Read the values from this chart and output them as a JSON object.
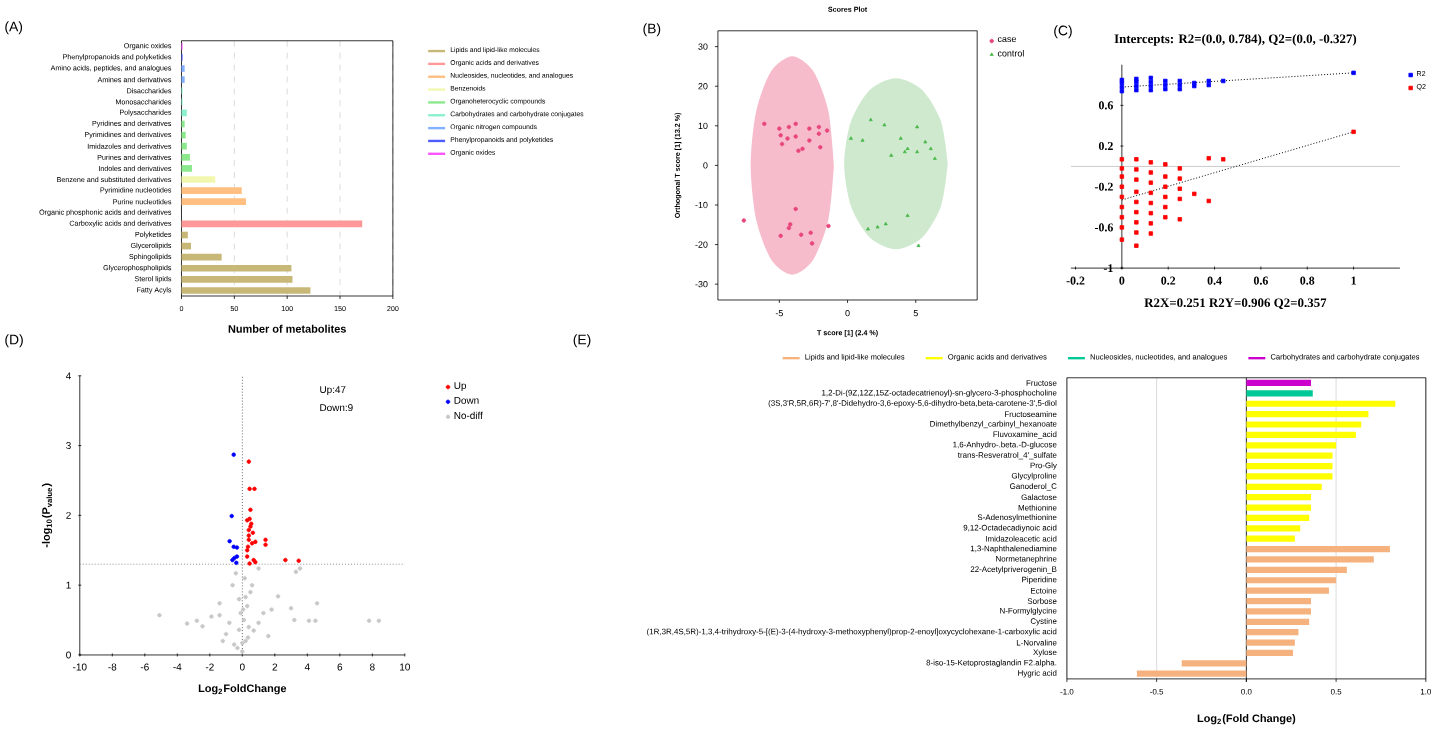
{
  "chart_data": [
    {
      "type": "bar",
      "orientation": "horizontal",
      "xlabel": "Number of metabolites",
      "annotations": [
        "(A)"
      ],
      "categories": [
        "Organic oxides",
        "Phenylpropanoids and polyketides",
        "Amino acids, peptides, and analogues",
        "Amines and derivatives",
        "Disaccharides",
        "Monosaccharides",
        "Polysaccharides",
        "Pyridines and derivatives",
        "Pyrimidines and derivatives",
        "Imidazoles and derivatives",
        "Purines and derivatives",
        "Indoles and derivatives",
        "Benzene and substituted derivatives",
        "Pyrimidine nucleotides",
        "Purine nucleotides",
        "Organic phosphonic acids and derivatives",
        "Carboxylic acids and derivatives",
        "Polyketides",
        "Glycerolipids",
        "Sphingolipids",
        "Glycerophospholipids",
        "Sterol lipids",
        "Fatty Acyls"
      ],
      "series": [
        {
          "name": "Lipids and lipid-like molecules",
          "color": "#c8b878",
          "values": [
            null,
            null,
            null,
            null,
            null,
            null,
            null,
            null,
            null,
            null,
            null,
            null,
            null,
            null,
            null,
            null,
            null,
            6,
            9,
            38,
            104,
            105,
            122
          ]
        },
        {
          "name": "Organic acids and derivatives",
          "color": "#ff9999",
          "values": [
            null,
            null,
            null,
            null,
            null,
            null,
            null,
            null,
            null,
            null,
            null,
            null,
            null,
            null,
            null,
            null,
            171,
            null,
            null,
            null,
            null,
            null,
            null
          ]
        },
        {
          "name": "Nucleosides, nucleotides, and analogues",
          "color": "#ffbf80",
          "values": [
            null,
            null,
            null,
            null,
            null,
            null,
            null,
            null,
            null,
            null,
            null,
            null,
            null,
            57,
            61,
            null,
            null,
            null,
            null,
            null,
            null,
            null,
            null
          ]
        },
        {
          "name": "Benzenoids",
          "color": "#f2f7b0",
          "values": [
            null,
            null,
            null,
            null,
            null,
            null,
            null,
            null,
            null,
            null,
            null,
            null,
            32,
            null,
            null,
            null,
            null,
            null,
            null,
            null,
            null,
            null,
            null
          ]
        },
        {
          "name": "Organoheterocyclic compounds",
          "color": "#8ce88c",
          "values": [
            null,
            null,
            null,
            null,
            null,
            null,
            null,
            3,
            4,
            5,
            8,
            10,
            null,
            null,
            null,
            null,
            null,
            null,
            null,
            null,
            null,
            null,
            null
          ]
        },
        {
          "name": "Carbohydrates and carbohydrate conjugates",
          "color": "#8cf0cc",
          "values": [
            null,
            null,
            null,
            null,
            1,
            1,
            5,
            null,
            null,
            null,
            null,
            null,
            null,
            null,
            null,
            null,
            null,
            null,
            null,
            null,
            null,
            null,
            null
          ]
        },
        {
          "name": "Organic nitrogen compounds",
          "color": "#80b0ff",
          "values": [
            null,
            null,
            3,
            3,
            null,
            null,
            null,
            null,
            null,
            null,
            null,
            null,
            null,
            null,
            null,
            null,
            null,
            null,
            null,
            null,
            null,
            null,
            null
          ]
        },
        {
          "name": "Phenylpropanoids and polyketides",
          "color": "#4d5cff",
          "values": [
            null,
            1,
            null,
            null,
            null,
            null,
            null,
            null,
            null,
            null,
            null,
            null,
            null,
            null,
            null,
            null,
            null,
            null,
            null,
            null,
            null,
            null,
            null
          ]
        },
        {
          "name": "Organic oxides",
          "color": "#ff55ff",
          "values": [
            1,
            null,
            null,
            null,
            null,
            null,
            null,
            null,
            null,
            null,
            null,
            null,
            null,
            null,
            null,
            null,
            null,
            null,
            null,
            null,
            null,
            null,
            null
          ]
        }
      ],
      "xlim": [
        0,
        200
      ],
      "xticks": [
        0,
        50,
        100,
        150,
        200
      ],
      "grid": "x",
      "legend": "right"
    },
    {
      "type": "scatter",
      "title": "Scores Plot",
      "xlabel": "T score [1] (2.4 %)",
      "ylabel": "Orthogonal T score [1] (13.2 %)",
      "annotations": [
        "(B)"
      ],
      "series": [
        {
          "type": "area",
          "color": "#f6bccb",
          "x": [
            -1.0,
            -1.41,
            -2.53,
            -4.05,
            -5.58,
            -6.69,
            -7.1,
            -6.69,
            -5.58,
            -4.05,
            -2.53,
            -1.41,
            -1.0
          ],
          "values": [
            0,
            13.8,
            23.9,
            27.6,
            23.9,
            13.8,
            0,
            -13.8,
            -23.9,
            -27.6,
            -23.9,
            -13.8,
            0
          ]
        },
        {
          "type": "area",
          "color": "#cfe9cf",
          "x": [
            7.35,
            6.84,
            5.45,
            3.55,
            1.65,
            0.26,
            -0.25,
            0.26,
            1.65,
            3.55,
            5.45,
            6.84,
            7.35
          ],
          "values": [
            0.4,
            11.2,
            19.1,
            22.0,
            19.1,
            11.2,
            0.4,
            -10.4,
            -18.3,
            -21.2,
            -18.3,
            -10.4,
            0.4
          ]
        },
        {
          "name": "case",
          "color": "#e8457a",
          "marker": "circle",
          "x": [
            -6.1,
            -5.0,
            -4.3,
            -3.8,
            -2.8,
            -2.1,
            -1.5,
            -4.9,
            -4.4,
            -3.8,
            -2.8,
            -2.1,
            -4.8,
            -3.6,
            -2.0,
            -3.3,
            -7.6,
            -3.8,
            -4.2,
            -4.3,
            -4.9,
            -3.4,
            -2.7,
            -1.4,
            -2.6
          ],
          "values": [
            10.5,
            9.3,
            9.7,
            10.5,
            9.3,
            9.7,
            8.8,
            7.6,
            6.8,
            7.3,
            6.3,
            8.0,
            5.4,
            3.7,
            4.6,
            4.2,
            -13.9,
            -11.0,
            -14.9,
            -15.8,
            -17.8,
            -17.5,
            -17.0,
            -15.3,
            -19.7
          ]
        },
        {
          "name": "control",
          "color": "#4cb84c",
          "marker": "triangle",
          "x": [
            0.25,
            1.7,
            1.1,
            2.7,
            3.9,
            3.2,
            4.2,
            4.4,
            5.1,
            5.1,
            5.7,
            6.1,
            6.4,
            2.8,
            4.4,
            5.2,
            1.5,
            2.2
          ],
          "values": [
            6.8,
            11.5,
            6.3,
            10.2,
            6.8,
            2.5,
            3.4,
            4.2,
            9.7,
            3.4,
            5.9,
            4.2,
            1.7,
            -14.8,
            -12.7,
            -20.3,
            -16.1,
            -15.6
          ]
        }
      ],
      "xlim": [
        -9.5,
        9.5
      ],
      "xticks": [
        -5,
        0,
        5
      ],
      "ylim": [
        -34,
        34
      ],
      "yticks": [
        -30,
        -20,
        -10,
        0,
        10,
        20,
        30
      ],
      "legend": "top right"
    },
    {
      "type": "scatter",
      "title": "Intercepts: R2=(0.0, 0.784), Q2=(0.0, -0.327)",
      "xlabel": "R2X=0.251   R2Y=0.906   Q2=0.357",
      "annotations": [
        "(C)"
      ],
      "series": [
        {
          "name": "R2",
          "color": "#0000ff",
          "marker": "square",
          "x": [
            0,
            0,
            0,
            0,
            0.0625,
            0.0625,
            0.0625,
            0.0625,
            0.125,
            0.125,
            0.125,
            0.125,
            0.1875,
            0.1875,
            0.1875,
            0.25,
            0.25,
            0.25,
            0.3125,
            0.3125,
            0.375,
            0.375,
            0.4375,
            1
          ],
          "values": [
            0.74,
            0.78,
            0.82,
            0.85,
            0.75,
            0.79,
            0.83,
            0.86,
            0.75,
            0.79,
            0.83,
            0.87,
            0.76,
            0.8,
            0.84,
            0.76,
            0.8,
            0.84,
            0.79,
            0.82,
            0.8,
            0.84,
            0.84,
            0.92
          ]
        },
        {
          "name": "Q2",
          "color": "#ff0000",
          "marker": "square",
          "x": [
            0,
            0,
            0,
            0,
            0,
            0,
            0,
            0,
            0,
            0.0625,
            0.0625,
            0.0625,
            0.0625,
            0.0625,
            0.0625,
            0.0625,
            0.0625,
            0.0625,
            0.125,
            0.125,
            0.125,
            0.125,
            0.125,
            0.125,
            0.125,
            0.125,
            0.1875,
            0.1875,
            0.1875,
            0.1875,
            0.1875,
            0.1875,
            0.25,
            0.25,
            0.25,
            0.25,
            0.25,
            0.3125,
            0.375,
            0.375,
            0.4375,
            1
          ],
          "values": [
            0.07,
            -0.02,
            -0.1,
            -0.2,
            -0.3,
            -0.4,
            -0.5,
            -0.6,
            -0.72,
            0.07,
            -0.03,
            -0.13,
            -0.25,
            -0.35,
            -0.45,
            -0.55,
            -0.65,
            -0.78,
            0.04,
            -0.06,
            -0.16,
            -0.26,
            -0.36,
            -0.46,
            -0.56,
            -0.66,
            0.02,
            -0.1,
            -0.2,
            -0.3,
            -0.4,
            -0.5,
            -0.02,
            -0.12,
            -0.22,
            -0.32,
            -0.52,
            -0.27,
            0.08,
            -0.34,
            0.07,
            0.34
          ]
        },
        {
          "type": "line",
          "line_style": "dotted",
          "color": "#000000",
          "x": [
            0,
            1
          ],
          "values": [
            0.78,
            0.92
          ]
        },
        {
          "type": "line",
          "line_style": "dotted",
          "color": "#000000",
          "x": [
            0,
            1
          ],
          "values": [
            -0.33,
            0.34
          ]
        }
      ],
      "ref_lines": [
        {
          "axis": "y",
          "value": 0,
          "color": "#c8c8c8",
          "line_style": "solid"
        }
      ],
      "xlim": [
        -0.22,
        1.2
      ],
      "xticks": [
        -0.2,
        0,
        0.2,
        0.4,
        0.6,
        0.8,
        1
      ],
      "ylim": [
        -1,
        1
      ],
      "yticks": [
        -1,
        -0.6,
        -0.2,
        0.2,
        0.6
      ],
      "legend": "top right"
    },
    {
      "type": "scatter",
      "xlabel": "Log$_{2}$FoldChange",
      "ylabel": "-log$_{10}$(P$_{value}$)",
      "annotations": [
        "(D)",
        "Up:47",
        "Down:9"
      ],
      "marker": "circle",
      "series": [
        {
          "name": "Up",
          "color": "#ff0000",
          "x": [
            0.4,
            0.45,
            0.75,
            0.5,
            0.45,
            0.3,
            0.5,
            0.4,
            0.4,
            0.4,
            0.3,
            0.3,
            0.6,
            0.7,
            0.45,
            1.43,
            1.43,
            0.8,
            2.65,
            3.47,
            0.8,
            0.55,
            0.35,
            0.65
          ],
          "values": [
            2.77,
            2.38,
            2.38,
            2.08,
            1.95,
            1.93,
            1.84,
            1.79,
            1.71,
            1.65,
            1.5,
            1.41,
            1.6,
            1.36,
            1.31,
            1.65,
            1.58,
            1.62,
            1.36,
            1.35,
            1.33,
            1.88,
            1.55,
            1.75
          ]
        },
        {
          "name": "Down",
          "color": "#0000ff",
          "x": [
            -0.53,
            -0.65,
            -0.78,
            -0.53,
            -0.33,
            -0.33,
            -0.61,
            -0.37,
            -0.49
          ],
          "values": [
            2.87,
            1.99,
            1.63,
            1.55,
            1.54,
            1.41,
            1.36,
            1.32,
            1.39
          ]
        },
        {
          "name": "No-diff",
          "color": "#c8c8c8",
          "x": [
            -5.1,
            -3.4,
            -2.8,
            -2.45,
            -1.9,
            -1.4,
            -1.4,
            -0.8,
            -0.6,
            0,
            -0.2,
            0.2,
            0.6,
            1.0,
            1.6,
            1.8,
            2.2,
            3.0,
            3.2,
            4.1,
            4.5,
            4.6,
            7.8,
            8.4,
            3.55,
            3.3,
            1.0,
            -0.4,
            -1.0,
            -0.3,
            0.1,
            0.3,
            0.5,
            -0.1,
            0.2,
            0.4,
            0.0,
            -0.2,
            0.15,
            0.35,
            0.05,
            -0.5,
            0.7,
            -1.2,
            1.3
          ],
          "values": [
            0.57,
            0.45,
            0.49,
            0.41,
            0.55,
            0.74,
            0.57,
            0.46,
            1.0,
            0.17,
            0.36,
            0.83,
            1.0,
            0.46,
            0.27,
            0.65,
            0.84,
            0.67,
            0.5,
            0.49,
            0.49,
            0.74,
            0.49,
            0.49,
            1.24,
            1.19,
            1.24,
            1.17,
            0.3,
            0.1,
            0.5,
            0.7,
            0.9,
            0.6,
            0.2,
            0.4,
            0.05,
            0.8,
            1.1,
            0.25,
            0.65,
            0.15,
            0.35,
            0.2,
            0.6
          ]
        }
      ],
      "ref_lines": [
        {
          "axis": "y",
          "value": 1.3,
          "color": "#909090",
          "line_style": "dotted"
        },
        {
          "axis": "x",
          "value": 0,
          "color": "#606060",
          "line_style": "dotted"
        }
      ],
      "xlim": [
        -10,
        10
      ],
      "xticks": [
        -10,
        -8,
        -6,
        -4,
        -2,
        0,
        2,
        4,
        6,
        8,
        10
      ],
      "ylim": [
        0,
        4
      ],
      "yticks": [
        0,
        1,
        2,
        3,
        4
      ],
      "legend": "right"
    },
    {
      "type": "bar",
      "orientation": "horizontal",
      "xlabel": "Log$_{2}$(Fold Change)",
      "annotations": [
        "(E)"
      ],
      "categories": [
        "Fructose",
        "1,2-Di-(9Z,12Z,15Z-octadecatrienoyl)-sn-glycero-3-phosphocholine",
        "(3S,3'R,5R,6R)-7',8'-Didehydro-3,6-epoxy-5,6-dihydro-beta,beta-carotene-3',5-diol",
        "Fructoseamine",
        "Dimethylbenzyl_carbinyl_hexanoate",
        "Fluvoxamine_acid",
        "1,6-Anhydro-.beta.-D-glucose",
        "trans-Resveratrol_4'_sulfate",
        "Pro-Gly",
        "Glycylproline",
        "Ganoderol_C",
        "Galactose",
        "Methionine",
        "S-Adenosylmethionine",
        "9,12-Octadecadiynoic acid",
        "Imidazoleacetic acid",
        "1,3-Naphthalenediamine",
        "Normetanephrine",
        "22-Acetylpriverogenin_B",
        "Piperidine",
        "Ectoine",
        "Sorbose",
        "N-Formylglycine",
        "Cystine",
        "(1R,3R,4S,5R)-1,3,4-trihydroxy-5-[(E)-3-(4-hydroxy-3-methoxyphenyl)prop-2-enoyl]oxycyclohexane-1-carboxylic acid",
        "L-Norvaline",
        "Xylose",
        "8-iso-15-Ketoprostaglandin F2.alpha.",
        "Hygric acid"
      ],
      "series": [
        {
          "name": "Lipids and lipid-like molecules",
          "color": "#f5b27e",
          "values": [
            null,
            null,
            null,
            null,
            null,
            null,
            null,
            null,
            null,
            null,
            null,
            null,
            null,
            null,
            null,
            null,
            0.8,
            0.71,
            0.56,
            0.5,
            0.46,
            0.36,
            0.36,
            0.35,
            0.29,
            0.27,
            0.26,
            -0.36,
            -0.61
          ]
        },
        {
          "name": "Organic acids and derivatives",
          "color": "#ffff00",
          "values": [
            null,
            null,
            0.83,
            0.68,
            0.64,
            0.61,
            0.5,
            0.48,
            0.48,
            0.48,
            0.42,
            0.36,
            0.36,
            0.35,
            0.3,
            0.27,
            null,
            null,
            null,
            null,
            null,
            null,
            null,
            null,
            null,
            null,
            null,
            null,
            null
          ]
        },
        {
          "name": "Nucleosides, nucleotides, and analogues",
          "color": "#00c896",
          "values": [
            null,
            0.37,
            null,
            null,
            null,
            null,
            null,
            null,
            null,
            null,
            null,
            null,
            null,
            null,
            null,
            null,
            null,
            null,
            null,
            null,
            null,
            null,
            null,
            null,
            null,
            null,
            null,
            null,
            null
          ]
        },
        {
          "name": "Carbohydrates and carbohydrate conjugates",
          "color": "#cc00cc",
          "values": [
            0.36,
            null,
            null,
            null,
            null,
            null,
            null,
            null,
            null,
            null,
            null,
            null,
            null,
            null,
            null,
            null,
            null,
            null,
            null,
            null,
            null,
            null,
            null,
            null,
            null,
            null,
            null,
            null,
            null
          ]
        }
      ],
      "xlim": [
        -1,
        1
      ],
      "xticks": [
        {
          "value": -1,
          "label": "-1.0"
        },
        {
          "value": -0.5,
          "label": "-0.5"
        },
        {
          "value": 0,
          "label": "0.0"
        },
        {
          "value": 0.5,
          "label": "0.5"
        },
        {
          "value": 1,
          "label": "1.0"
        }
      ],
      "grid": "x",
      "legend": "top"
    }
  ]
}
